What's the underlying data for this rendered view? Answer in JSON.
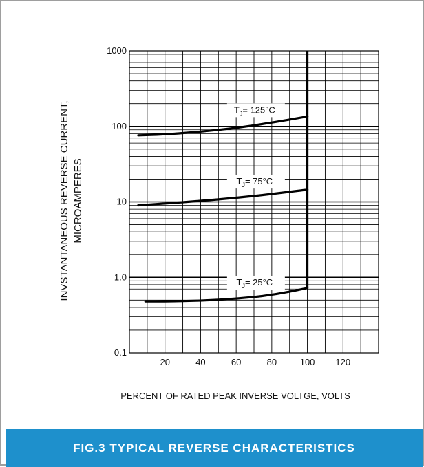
{
  "caption": "FIG.3 TYPICAL REVERSE CHARACTERISTICS",
  "colors": {
    "accent": "#1e90cc",
    "caption_text": "#ffffff",
    "border": "#9e9e9e",
    "curve": "#000000"
  },
  "chart_data": {
    "type": "line",
    "title": "",
    "xlabel": "PERCENT OF RATED PEAK INVERSE VOLTGE, VOLTS",
    "ylabel_lines": [
      "INVSTANTANEOUS REVERSE CURRENT,",
      "MICROAMPERES"
    ],
    "xlim": [
      0,
      140
    ],
    "ylim": [
      0.1,
      1000
    ],
    "y_scale": "log",
    "grid": true,
    "x_ticks": [
      20,
      40,
      60,
      80,
      100,
      120
    ],
    "x_tick_labels": [
      "20",
      "40",
      "60",
      "80",
      "100",
      "120"
    ],
    "y_ticks": [
      0.1,
      1,
      10,
      100,
      1000
    ],
    "y_tick_labels": [
      "0.1",
      "1.0",
      "10",
      "100",
      "1000"
    ],
    "series": [
      {
        "name": "TJ= 125°C",
        "label_main": "T",
        "label_sub": "J",
        "label_rest": "= 125°C",
        "x": [
          5,
          20,
          40,
          60,
          80,
          100
        ],
        "values": [
          76,
          78,
          85,
          95,
          112,
          135
        ]
      },
      {
        "name": "TJ= 75°C",
        "label_main": "T",
        "label_sub": "J",
        "label_rest": "= 75°C",
        "x": [
          5,
          20,
          40,
          60,
          80,
          100
        ],
        "values": [
          9,
          9.5,
          10.3,
          11.3,
          12.7,
          14.5
        ]
      },
      {
        "name": "TJ= 25°C",
        "label_main": "T",
        "label_sub": "J",
        "label_rest": "= 25°C",
        "x": [
          9,
          20,
          40,
          60,
          80,
          100
        ],
        "values": [
          0.48,
          0.48,
          0.49,
          0.52,
          0.58,
          0.72
        ]
      }
    ],
    "vertical_limit": {
      "x": 100,
      "y_from": 0.72,
      "y_to": 1000
    }
  }
}
